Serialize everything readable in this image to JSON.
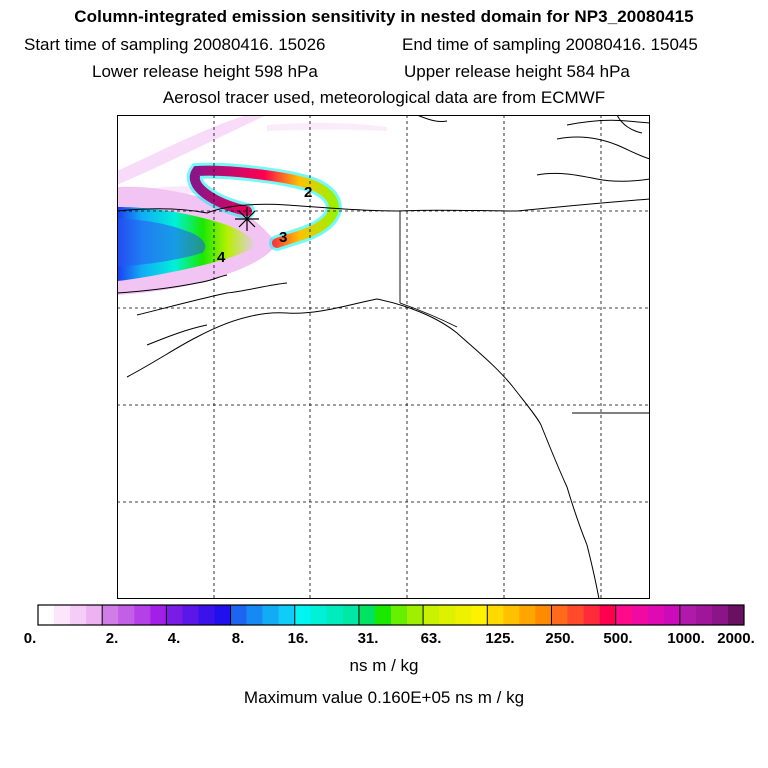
{
  "title": "Column-integrated emission sensitivity in nested domain for NP3_20080415",
  "info": {
    "start_label": "Start time of sampling 20080416. 15026",
    "end_label": "End time of sampling 20080416. 15045",
    "lower_label": "Lower release height  598 hPa",
    "upper_label": "Upper release height  584 hPa",
    "tracer_line": "Aerosol tracer used, meteorological data are from ECMWF"
  },
  "map": {
    "age_markers": [
      "2",
      "3",
      "4"
    ],
    "release_marker": "release-point-star",
    "grid": "dashed",
    "colors": {
      "land_outline": "#000000",
      "background": "#ffffff"
    }
  },
  "colorbar": {
    "tick_labels": [
      "0.",
      "2.",
      "4.",
      "8.",
      "16.",
      "31.",
      "63.",
      "125.",
      "250.",
      "500.",
      "1000.",
      "2000."
    ],
    "colors": [
      [
        "#ffffff",
        "#fbe6fb",
        "#f5ccf7",
        "#eeb2f3"
      ],
      [
        "#d17de8",
        "#c35ee6",
        "#b640e8",
        "#a31fe8"
      ],
      [
        "#7a1ce6",
        "#5b17e8",
        "#3b12ea",
        "#2010ee"
      ],
      [
        "#1d64f0",
        "#1789f4",
        "#12acf6",
        "#0fcdf8"
      ],
      [
        "#00f4f2",
        "#00f0d8",
        "#00ecbe",
        "#00e8a6"
      ],
      [
        "#00e262",
        "#1ae800",
        "#66f000",
        "#9ef000"
      ],
      [
        "#c8f200",
        "#dcf200",
        "#eef200",
        "#fff200"
      ],
      [
        "#ffda00",
        "#ffc000",
        "#ffa500",
        "#ff8a00"
      ],
      [
        "#ff6a1c",
        "#ff4a2c",
        "#ff2a3a",
        "#ff0050"
      ],
      [
        "#ff0a8a",
        "#f00aa0",
        "#e00ab2",
        "#cc0aba"
      ],
      [
        "#b01aaa",
        "#a0169a",
        "#8a1488",
        "#6a1060"
      ]
    ],
    "units": "ns m / kg",
    "max_value_label": "Maximum value  0.160E+05 ns m / kg"
  }
}
